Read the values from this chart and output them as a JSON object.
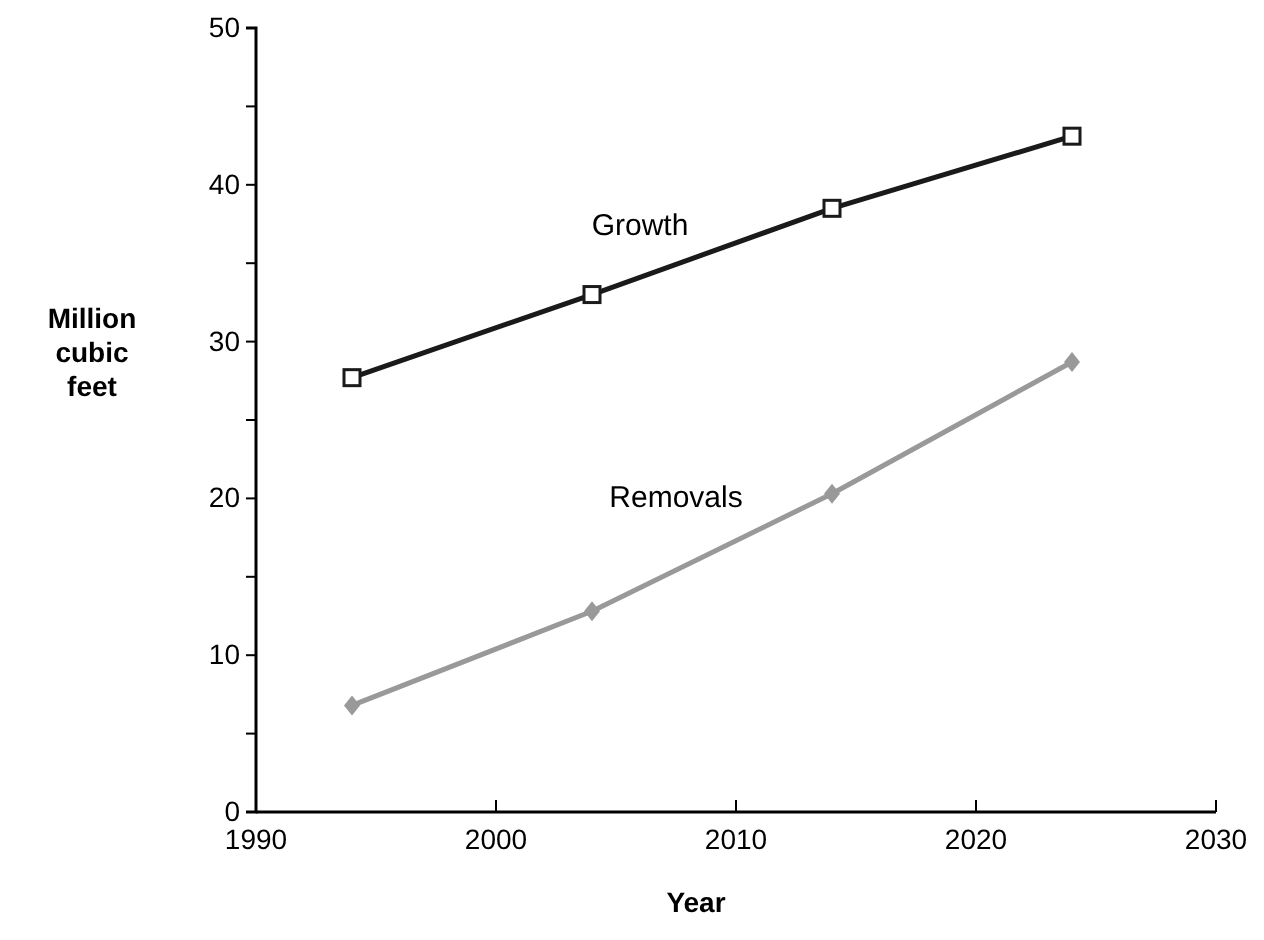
{
  "chart_data": {
    "type": "line",
    "xlabel": "Year",
    "ylabel": "Million cubic feet",
    "xlim": [
      1990,
      2030
    ],
    "xticks": [
      1990,
      2000,
      2010,
      2020,
      2030
    ],
    "ylim": [
      0,
      50
    ],
    "yticks": [
      0,
      {
        "value": 5,
        "label": null
      },
      10,
      {
        "value": 15,
        "label": null
      },
      20,
      {
        "value": 25,
        "label": null
      },
      30,
      {
        "value": 35,
        "label": null
      },
      40,
      {
        "value": 45,
        "label": null
      },
      50
    ],
    "grid": false,
    "series": [
      {
        "name": "Growth",
        "color": "#1a1a1a",
        "marker": "square",
        "x": [
          1994,
          2004,
          2014,
          2024
        ],
        "values": [
          27.7,
          33.0,
          38.5,
          43.1
        ]
      },
      {
        "name": "Removals",
        "color": "#999999",
        "marker": "diamond",
        "x": [
          1994,
          2004,
          2014,
          2024
        ],
        "values": [
          6.8,
          12.8,
          20.3,
          28.7
        ]
      }
    ]
  }
}
